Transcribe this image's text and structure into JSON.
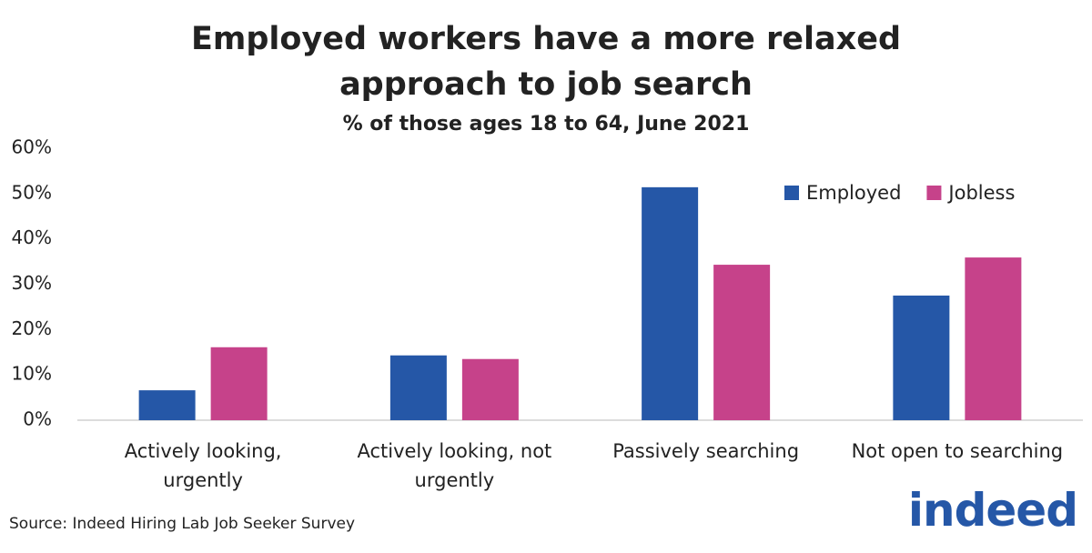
{
  "chart_data": {
    "type": "bar",
    "title": "Employed workers have a more relaxed approach to job search",
    "subtitle": "% of those ages 18 to 64, June 2021",
    "categories": [
      "Actively looking, urgently",
      "Actively looking, not urgently",
      "Passively searching",
      "Not open to searching"
    ],
    "series": [
      {
        "name": "Employed",
        "color": "#2557a7",
        "values": [
          6.6,
          14.3,
          51.4,
          27.5
        ]
      },
      {
        "name": "Jobless",
        "color": "#c6428a",
        "values": [
          16.1,
          13.5,
          34.3,
          35.9
        ]
      }
    ],
    "ylim": [
      0,
      60
    ],
    "yticks": [
      {
        "value": 0,
        "label": "0%"
      },
      {
        "value": 10,
        "label": "10%"
      },
      {
        "value": 20,
        "label": "20%"
      },
      {
        "value": 30,
        "label": "30%"
      },
      {
        "value": 40,
        "label": "40%"
      },
      {
        "value": 50,
        "label": "50%"
      },
      {
        "value": 60,
        "label": "60%"
      }
    ],
    "grid": false,
    "legend": "top-right",
    "source": "Source: Indeed Hiring Lab Job Seeker Survey",
    "logo": "indeed"
  }
}
